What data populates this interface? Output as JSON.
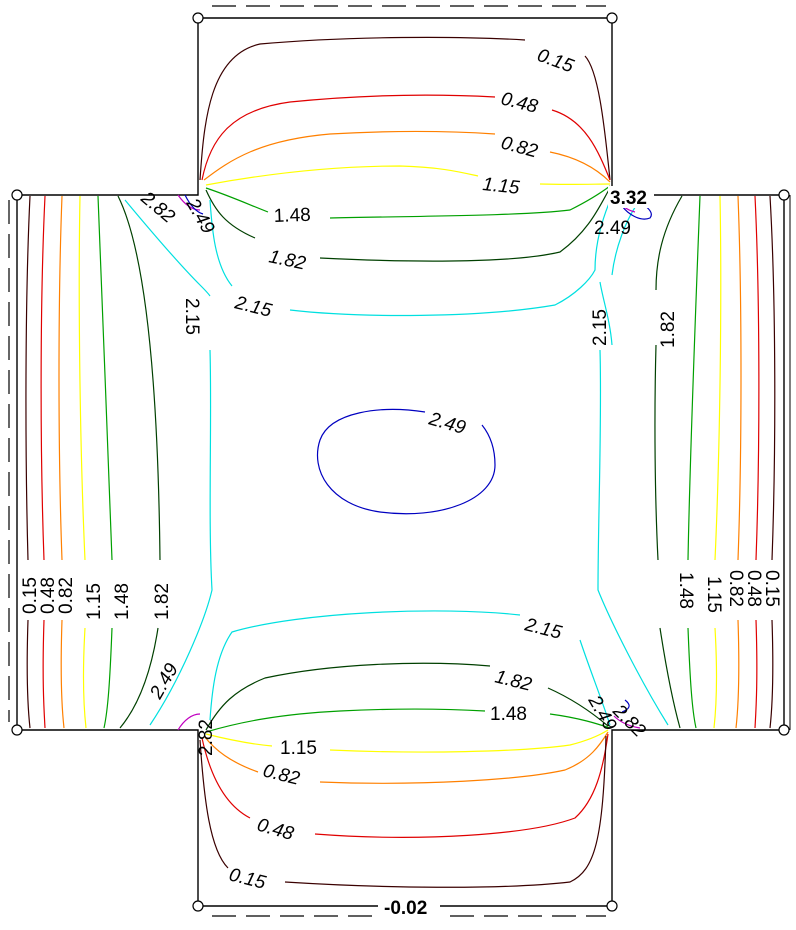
{
  "contour_levels": [
    "0.15",
    "0.48",
    "0.82",
    "1.15",
    "1.48",
    "1.82",
    "2.15",
    "2.49",
    "2.82"
  ],
  "level_colors": {
    "0.15": "#3a0000",
    "0.48": "#e00000",
    "0.82": "#ff8000",
    "1.15": "#ffff00",
    "1.48": "#00a000",
    "1.82": "#004000",
    "2.15": "#00e0e0",
    "2.49": "#0000c0",
    "2.82": "#c000c0"
  },
  "extremes": {
    "max_label": "3.32",
    "min_label": "-0.02"
  },
  "labels": {
    "top_015": "0.15",
    "top_048": "0.48",
    "top_082": "0.82",
    "top_115": "1.15",
    "top_148": "1.48",
    "top_182": "1.82",
    "tl_282": "2.82",
    "tl_249": "2.49",
    "tr_249": "2.49",
    "left_215": "2.15",
    "top_215": "2.15",
    "right_215": "2.15",
    "right_182": "1.82",
    "center_249": "2.49",
    "left_015": "0.15",
    "left_048": "0.48",
    "left_082": "0.82",
    "left_115": "1.15",
    "left_148": "1.48",
    "left_182": "1.82",
    "right_148": "1.48",
    "right_115": "1.15",
    "right_082": "0.82",
    "right_048": "0.48",
    "right_015": "0.15",
    "bottom_215": "2.15",
    "bottom_182": "1.82",
    "bottom_148": "1.48",
    "bl_249": "2.49",
    "bl_282": "2.82",
    "br_249": "2.49",
    "br_282": "2.82",
    "bottom_115": "1.15",
    "bottom_082": "0.82",
    "bottom_048": "0.48",
    "bottom_015": "0.15"
  }
}
